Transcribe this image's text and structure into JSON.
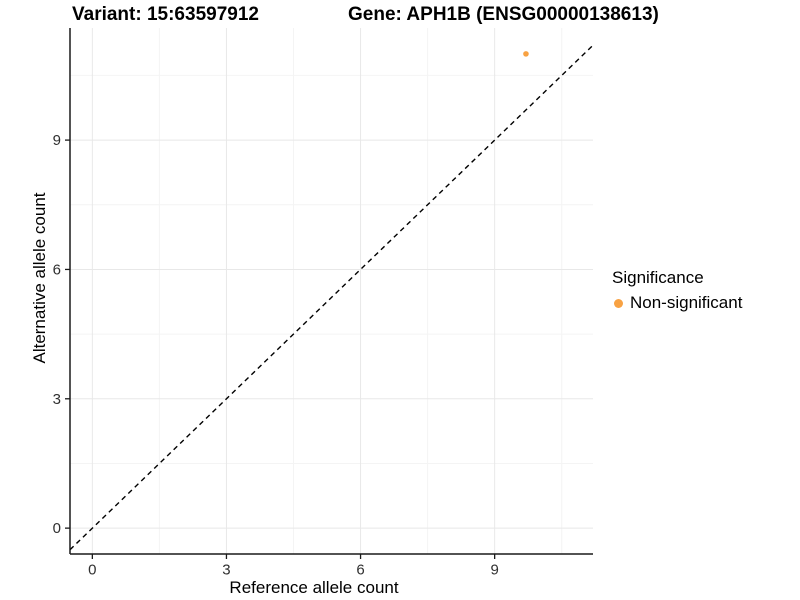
{
  "chart_data": {
    "type": "scatter",
    "titles": {
      "left": "Variant: 15:63597912",
      "right": "Gene: APH1B (ENSG00000138613)"
    },
    "xlabel": "Reference allele count",
    "ylabel": "Alternative allele count",
    "x_ticks": [
      0,
      3,
      6,
      9
    ],
    "y_ticks": [
      0,
      3,
      6,
      9
    ],
    "xlim": [
      -0.5,
      11.2
    ],
    "ylim": [
      -0.6,
      11.6
    ],
    "minor_tick_step": 1.5,
    "grid": {
      "major": true,
      "minor": true,
      "major_color": "#E8E8E8",
      "minor_color": "#F4F4F4"
    },
    "axis": {
      "line_color": "#1A1A1A",
      "tick_label_color": "#303030",
      "tick_length": 5
    },
    "reference_line": {
      "equation": "y = x",
      "style": "dashed",
      "color": "#000000"
    },
    "series": [
      {
        "name": "Non-significant",
        "color": "#F8A243",
        "point_radius": 2.8,
        "points": [
          {
            "x": 9.7,
            "y": 11.0
          }
        ]
      }
    ],
    "legend": {
      "title": "Significance",
      "position": "right",
      "entries": [
        {
          "label": "Non-significant",
          "color": "#F8A243"
        }
      ]
    }
  }
}
